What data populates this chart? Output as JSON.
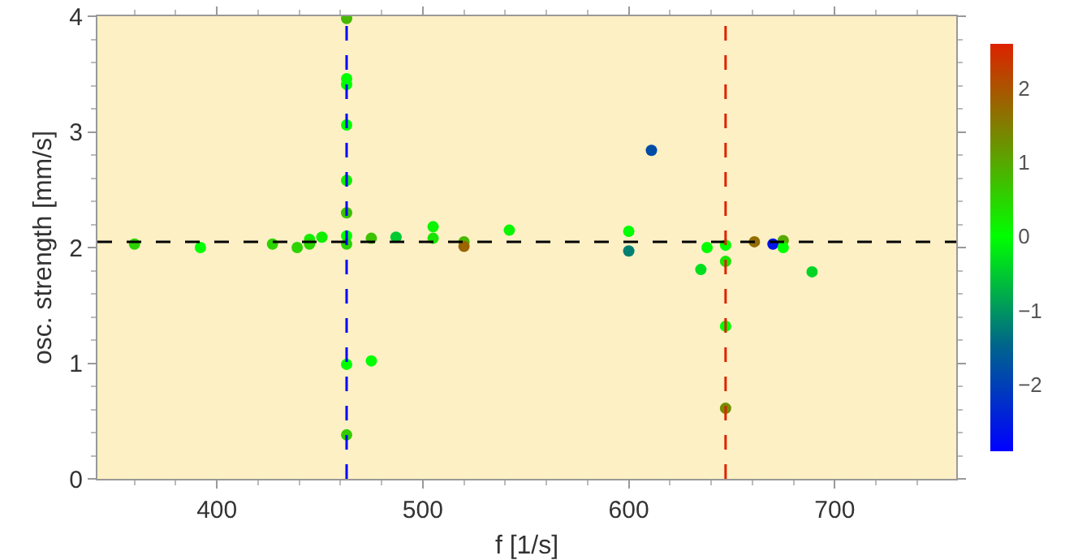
{
  "chart_data": {
    "type": "scatter",
    "xlabel": "f [1/s]",
    "ylabel": "osc. strength [mm/s]",
    "x": [
      360,
      392,
      427,
      439,
      445,
      445,
      451,
      463,
      463,
      463,
      463,
      463,
      463,
      463,
      463,
      463,
      463,
      475,
      475,
      487,
      505,
      505,
      520,
      520,
      542,
      611,
      600,
      600,
      638,
      635,
      647,
      647,
      647,
      647,
      661,
      670,
      675,
      675,
      689
    ],
    "values": [
      2.03,
      2.0,
      2.03,
      2.0,
      2.07,
      2.03,
      2.09,
      3.98,
      3.46,
      3.41,
      3.06,
      2.58,
      2.3,
      2.1,
      2.03,
      0.99,
      0.38,
      2.08,
      1.02,
      2.09,
      2.18,
      2.08,
      2.05,
      2.01,
      2.15,
      2.84,
      2.14,
      1.97,
      2.0,
      1.81,
      2.02,
      1.88,
      1.32,
      0.61,
      2.05,
      2.03,
      2.06,
      2.0,
      1.79
    ],
    "cvalues": [
      0.5,
      0,
      0.5,
      0.5,
      0.2,
      0.5,
      0.2,
      0.8,
      0,
      0,
      0,
      0.2,
      0.7,
      0,
      0.5,
      0,
      0.6,
      0.7,
      0,
      -0.5,
      0.1,
      0.3,
      0.8,
      1.8,
      0.1,
      -1.8,
      0,
      -1.2,
      0,
      -0.3,
      0,
      0.3,
      0,
      1.3,
      1.7,
      -2.6,
      1,
      0,
      -0.4
    ],
    "clim": [
      -2.9,
      2.6
    ],
    "cticks": [
      -2,
      -1,
      0,
      1,
      2
    ],
    "xlim": [
      342,
      759
    ],
    "xticks": [
      400,
      500,
      600,
      700
    ],
    "ylim": [
      0,
      4
    ],
    "yticks": [
      0,
      1,
      2,
      3,
      4
    ],
    "ref_lines": [
      {
        "axis": "y",
        "value": 2.05,
        "color": "#000000",
        "line_style": "dashed"
      },
      {
        "axis": "x",
        "value": 463,
        "color": "#0000ff",
        "line_style": "dashed"
      },
      {
        "axis": "x",
        "value": 647,
        "color": "#dd2200",
        "line_style": "dashed"
      }
    ],
    "marker": "circle",
    "grid": false
  }
}
